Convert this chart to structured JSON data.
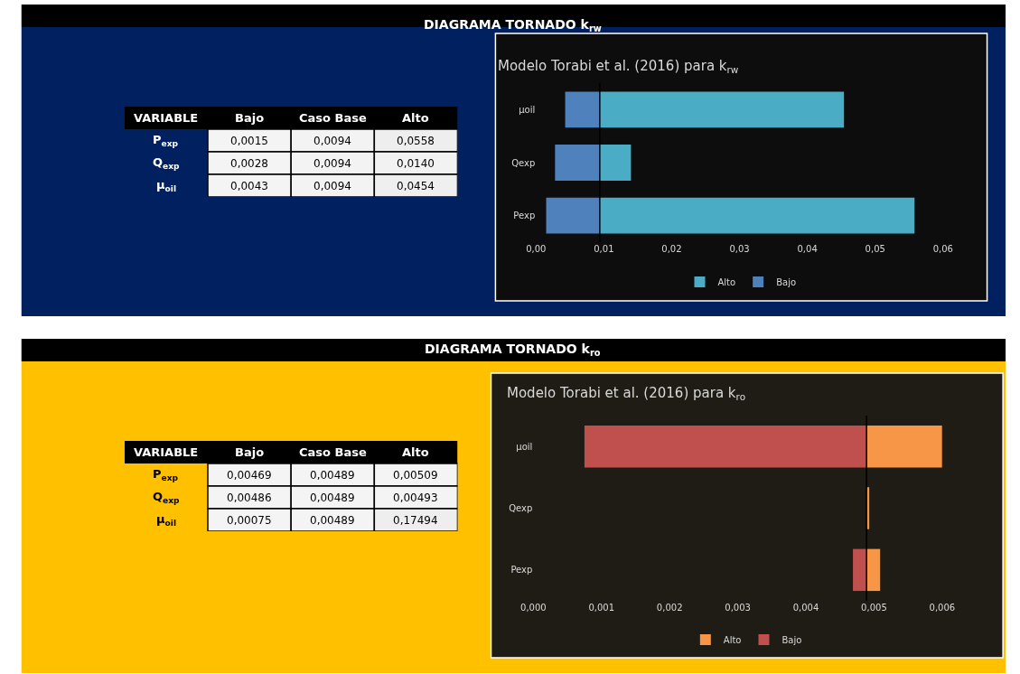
{
  "chart_data": [
    {
      "type": "heatmap",
      "title": "DIAGRAMA TORNADO k$_{rw}$",
      "ylabel": "VARIABLE",
      "categories": [
        "Bajo",
        "Caso Base",
        "Alto"
      ],
      "y_categories": [
        "P$_{exp}$",
        "Q$_{exp}$",
        "μ$_{oil}$"
      ],
      "cells": [
        [
          0.0015,
          0.0094,
          0.0558
        ],
        [
          0.0028,
          0.0094,
          0.014
        ],
        [
          0.0043,
          0.0094,
          0.0454
        ]
      ],
      "cell_labels": [
        [
          "0,0015",
          "0,0094",
          "0,0558"
        ],
        [
          "0,0028",
          "0,0094",
          "0,0140"
        ],
        [
          "0,0043",
          "0,0094",
          "0,0454"
        ]
      ]
    },
    {
      "type": "bar",
      "orientation": "horizontal",
      "title": "Modelo Torabi et al. (2016) para k$_{rw}$",
      "categories": [
        "µoil",
        "Qexp",
        "Pexp"
      ],
      "series": [
        {
          "name": "Alto",
          "color": "#4bacc6",
          "base": [
            0.0094,
            0.0094,
            0.0094
          ],
          "values": [
            0.036,
            0.0046,
            0.0464
          ]
        },
        {
          "name": "Bajo",
          "color": "#4f81bd",
          "base": [
            0.0043,
            0.0028,
            0.0015
          ],
          "values": [
            0.0051,
            0.0066,
            0.0079
          ]
        }
      ],
      "xlim": [
        0,
        0.06
      ],
      "xticks": [
        {
          "value": 0,
          "label": "0,00"
        },
        {
          "value": 0.01,
          "label": "0,01"
        },
        {
          "value": 0.02,
          "label": "0,02"
        },
        {
          "value": 0.03,
          "label": "0,03"
        },
        {
          "value": 0.04,
          "label": "0,04"
        },
        {
          "value": 0.05,
          "label": "0,05"
        },
        {
          "value": 0.06,
          "label": "0,06"
        }
      ],
      "ref_lines": [
        {
          "axis": "x",
          "value": 0.0094,
          "color": "#000000"
        }
      ],
      "legend": "bottom",
      "grid": false
    },
    {
      "type": "heatmap",
      "title": "DIAGRAMA TORNADO k$_{ro}$",
      "ylabel": "VARIABLE",
      "categories": [
        "Bajo",
        "Caso Base",
        "Alto"
      ],
      "y_categories": [
        "P$_{exp}$",
        "Q$_{exp}$",
        "μ$_{oil}$"
      ],
      "cells": [
        [
          0.00469,
          0.00489,
          0.00509
        ],
        [
          0.00486,
          0.00489,
          0.00493
        ],
        [
          0.00075,
          0.00489,
          0.17494
        ]
      ],
      "cell_labels": [
        [
          "0,00469",
          "0,00489",
          "0,00509"
        ],
        [
          "0,00486",
          "0,00489",
          "0,00493"
        ],
        [
          "0,00075",
          "0,00489",
          "0,17494"
        ]
      ]
    },
    {
      "type": "bar",
      "orientation": "horizontal",
      "title": "Modelo Torabi et al. (2016) para k$_{ro}$",
      "categories": [
        "µoil",
        "Qexp",
        "Pexp"
      ],
      "series": [
        {
          "name": "Alto",
          "color": "#f79646",
          "base": [
            0.00489,
            0.00489,
            0.00489
          ],
          "values": [
            0.00111,
            4e-05,
            0.0002
          ]
        },
        {
          "name": "Bajo",
          "color": "#c0504d",
          "base": [
            0.00075,
            null,
            0.00469
          ],
          "values": [
            0.00414,
            null,
            0.0002
          ]
        }
      ],
      "xlim": [
        0,
        0.006
      ],
      "xticks": [
        {
          "value": 0,
          "label": "0,000"
        },
        {
          "value": 0.001,
          "label": "0,001"
        },
        {
          "value": 0.002,
          "label": "0,002"
        },
        {
          "value": 0.003,
          "label": "0,003"
        },
        {
          "value": 0.004,
          "label": "0,004"
        },
        {
          "value": 0.005,
          "label": "0,005"
        },
        {
          "value": 0.006,
          "label": "0,006"
        }
      ],
      "ref_lines": [
        {
          "axis": "x",
          "value": 0.00489,
          "color": "#000000"
        }
      ],
      "legend": "bottom",
      "grid": false
    }
  ]
}
